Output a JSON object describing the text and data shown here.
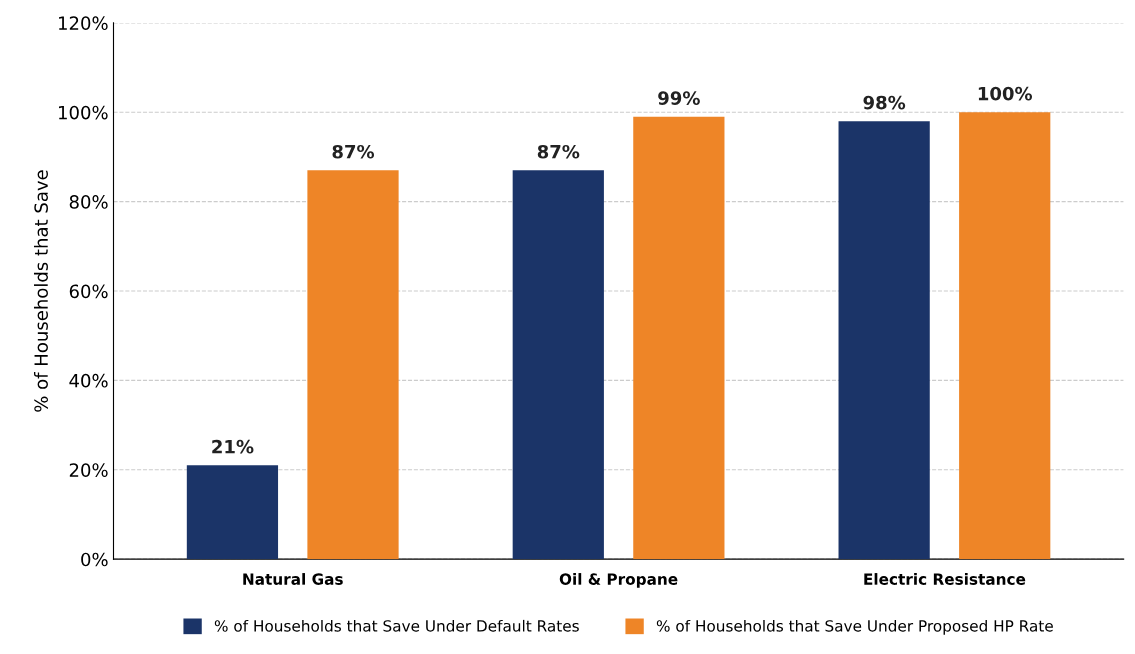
{
  "chart_data": {
    "type": "bar",
    "ylabel": "% of Households that Save",
    "categories": [
      "Natural Gas",
      "Oil & Propane",
      "Electric Resistance"
    ],
    "series": [
      {
        "name": "% of Households that Save Under Default Rates",
        "color": "#1b3468",
        "values": [
          21,
          87,
          98
        ],
        "value_labels": [
          "21%",
          "87%",
          "98%"
        ]
      },
      {
        "name": "% of Households that Save Under Proposed HP Rate",
        "color": "#ee8527",
        "values": [
          87,
          99,
          100
        ],
        "value_labels": [
          "87%",
          "99%",
          "100%"
        ]
      }
    ],
    "ylim": [
      0,
      120
    ],
    "yticks": [
      {
        "value": 0,
        "label": "0%"
      },
      {
        "value": 20,
        "label": "20%"
      },
      {
        "value": 40,
        "label": "40%"
      },
      {
        "value": 60,
        "label": "60%"
      },
      {
        "value": 80,
        "label": "80%"
      },
      {
        "value": 100,
        "label": "100%"
      },
      {
        "value": 120,
        "label": "120%"
      }
    ],
    "grid": "y",
    "legend": "bottom"
  }
}
